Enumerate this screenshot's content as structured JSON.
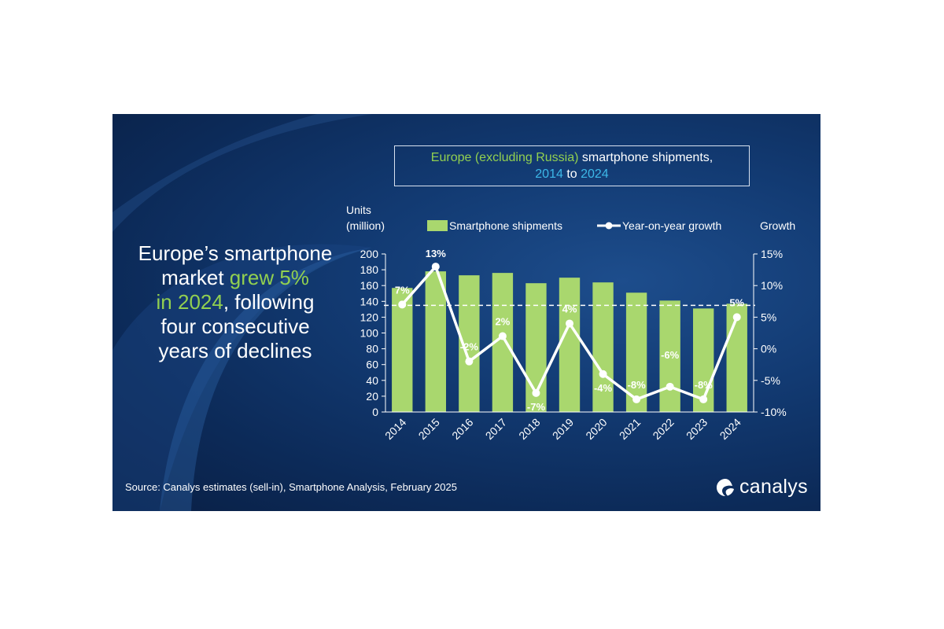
{
  "headline": {
    "line1": "Europe’s smartphone",
    "line2_pre": "market ",
    "line2_hl": "grew 5%",
    "line3_hl": "in 2024",
    "line3_post": ", following",
    "line4": "four consecutive",
    "line5": "years of declines"
  },
  "title": {
    "part1": "Europe (excluding Russia)",
    "part2": " smartphone shipments,",
    "part3": "2014",
    "part4": " to ",
    "part5": "2024"
  },
  "source": "Source: Canalys estimates (sell-in), Smartphone Analysis, February 2025",
  "logo": "canalys",
  "colors": {
    "bar": "#a9d76e",
    "line": "#ffffff",
    "highlight_green": "#92d050",
    "highlight_blue": "#3db8e8"
  },
  "chart_data": {
    "type": "bar",
    "categories": [
      "2014",
      "2015",
      "2016",
      "2017",
      "2018",
      "2019",
      "2020",
      "2021",
      "2022",
      "2023",
      "2024"
    ],
    "series": [
      {
        "name": "Smartphone shipments",
        "type": "bar",
        "axis": "left",
        "values": [
          157,
          178,
          173,
          176,
          163,
          170,
          164,
          151,
          141,
          131,
          137
        ]
      },
      {
        "name": "Year-on-year growth",
        "type": "line",
        "axis": "right",
        "values": [
          7,
          13,
          -2,
          2,
          -7,
          4,
          -4,
          -8,
          -6,
          -8,
          5
        ],
        "labels": [
          "7%",
          "13%",
          "-2%",
          "2%",
          "-7%",
          "4%",
          "-4%",
          "-8%",
          "-6%",
          "-8%",
          "5%"
        ]
      }
    ],
    "ylabel_left_line1": "Units",
    "ylabel_left_line2": "(million)",
    "ylabel_right": "Growth",
    "ylim_left": [
      0,
      200
    ],
    "yticks_left": [
      0,
      20,
      40,
      60,
      80,
      100,
      120,
      140,
      160,
      180,
      200
    ],
    "ylim_right": [
      -10,
      15
    ],
    "yticks_right": [
      -10,
      -5,
      0,
      5,
      10,
      15
    ],
    "yticklabels_right": [
      "-10%",
      "-5%",
      "0%",
      "5%",
      "10%",
      "15%"
    ],
    "reference_line": {
      "axis": "left",
      "value": 135,
      "style": "dashed"
    },
    "legend_position": "top"
  }
}
